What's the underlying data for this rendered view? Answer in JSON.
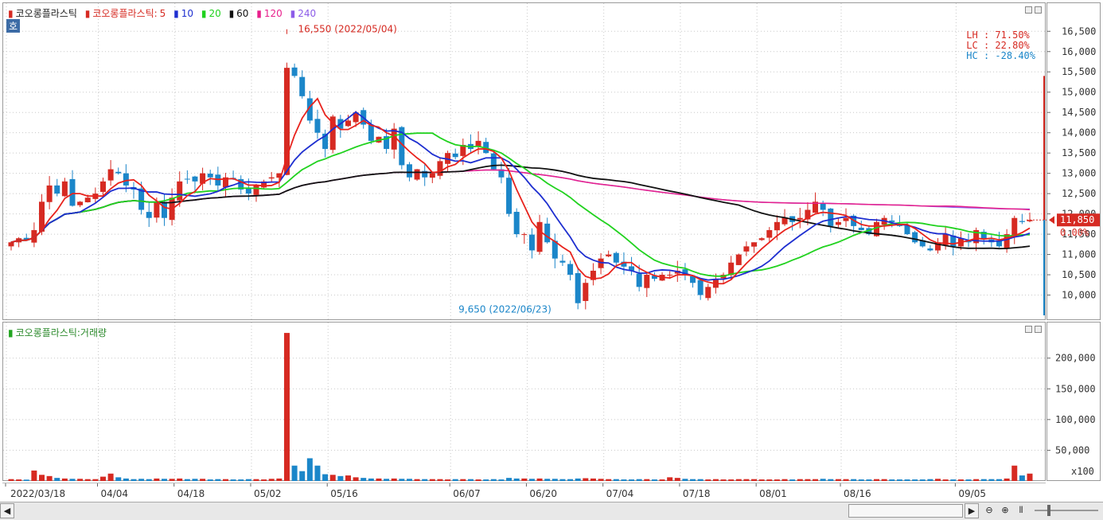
{
  "legend": {
    "name": "코오롱플라스틱",
    "ma_prefix": "코오롱플라스틱:",
    "ma5": "5",
    "ma10": "10",
    "ma20": "20",
    "ma60": "60",
    "ma120": "120",
    "ma240": "240",
    "volume_title": "코오롱플라스틱:거래량",
    "hoga_tag": "호"
  },
  "annotations": {
    "high": "16,550 (2022/05/04)",
    "low": "9,650 (2022/06/23)"
  },
  "stats": {
    "lh": "LH :  71.50%",
    "lc": "LC :  22.80%",
    "hc": "HC : -28.40%"
  },
  "price_axis": {
    "ticks": [
      "16,500",
      "16,000",
      "15,500",
      "15,000",
      "14,500",
      "14,000",
      "13,500",
      "13,000",
      "12,500",
      "12,000",
      "11,500",
      "11,000",
      "10,500",
      "10,000"
    ],
    "current_price": "11,850",
    "current_pct": "0.00%"
  },
  "volume_axis": {
    "ticks": [
      "200,000",
      "150,000",
      "100,000",
      "50,000"
    ],
    "unit": "x100"
  },
  "dates": [
    "2022/03/18",
    "04/04",
    "04/18",
    "05/02",
    "05/16",
    "06/07",
    "06/20",
    "07/04",
    "07/18",
    "08/01",
    "08/16",
    "09/05"
  ],
  "colors": {
    "up": "#d62a22",
    "down": "#1b86c9",
    "ma5": "#e8231d",
    "ma10": "#1e2fd0",
    "ma20": "#21d21f",
    "ma60": "#111111",
    "ma120": "#e8208c",
    "ma240": "#8c5ce8"
  },
  "chart_data": {
    "type": "candlestick",
    "start_close": 11300,
    "closes": [
      11300,
      11400,
      11350,
      11600,
      12300,
      12700,
      12500,
      12800,
      12200,
      12300,
      12400,
      12500,
      12800,
      13100,
      13000,
      12700,
      12600,
      12100,
      11900,
      12300,
      11900,
      12400,
      12800,
      12850,
      12800,
      13000,
      12900,
      12700,
      12900,
      12850,
      12600,
      12500,
      12700,
      12800,
      12900,
      13000,
      15600,
      15400,
      14900,
      14300,
      14000,
      13600,
      14400,
      14100,
      14300,
      14500,
      14200,
      13800,
      13900,
      13600,
      14100,
      13200,
      12900,
      13100,
      12900,
      13000,
      13300,
      13500,
      13400,
      13700,
      13600,
      13800,
      13500,
      13100,
      12900,
      12000,
      11500,
      11500,
      11100,
      11800,
      11300,
      10900,
      10800,
      10500,
      9800,
      10300,
      10600,
      10900,
      11000,
      10800,
      10700,
      10600,
      10200,
      10500,
      10400,
      10500,
      10500,
      10600,
      10500,
      10300,
      10000,
      10200,
      10400,
      10500,
      10800,
      11000,
      11200,
      11300,
      11400,
      11600,
      11800,
      11900,
      11800,
      11900,
      12100,
      12300,
      12100,
      11700,
      11800,
      11900,
      11700,
      11600,
      11500,
      11800,
      11900,
      11800,
      11700,
      11500,
      11300,
      11200,
      11100,
      11300,
      11500,
      11200,
      11400,
      11300,
      11600,
      11400,
      11300,
      11200,
      11500,
      11900,
      11800,
      11850
    ],
    "volumes": [
      3000,
      2500,
      2200,
      17000,
      10000,
      8000,
      5000,
      4000,
      3500,
      3500,
      3000,
      3000,
      7000,
      12000,
      6000,
      4000,
      3000,
      3500,
      3000,
      4000,
      3500,
      3500,
      4000,
      3000,
      3500,
      3500,
      2500,
      3000,
      3000,
      2500,
      2500,
      3000,
      3000,
      2500,
      3500,
      4000,
      241000,
      25000,
      16000,
      37000,
      25000,
      11000,
      10000,
      8000,
      9000,
      6000,
      5000,
      4000,
      4000,
      3500,
      4000,
      3500,
      3500,
      3000,
      3000,
      3000,
      3000,
      2500,
      3000,
      3000,
      3000,
      2500,
      2500,
      3000,
      2500,
      5000,
      4000,
      4000,
      3500,
      4000,
      3500,
      3500,
      3000,
      3000,
      4000,
      4500,
      4000,
      3500,
      3000,
      3000,
      2500,
      2500,
      3000,
      3000,
      2500,
      2500,
      6000,
      5000,
      3500,
      3000,
      3000,
      2500,
      3000,
      2500,
      2500,
      3000,
      3000,
      3000,
      2500,
      2500,
      2500,
      3000,
      2500,
      3000,
      3000,
      3000,
      3500,
      3000,
      3000,
      3000,
      3000,
      2500,
      2500,
      3000,
      3000,
      2500,
      2500,
      2500,
      2500,
      2500,
      3000,
      3500,
      2500,
      2500,
      2500,
      2500,
      3000,
      3000,
      3000,
      3000,
      4000,
      25000,
      9000,
      12000
    ],
    "high_marker": 16550,
    "low_marker": 9650,
    "ylim": [
      9500,
      16800
    ],
    "vol_ylim": [
      0,
      245000
    ]
  }
}
